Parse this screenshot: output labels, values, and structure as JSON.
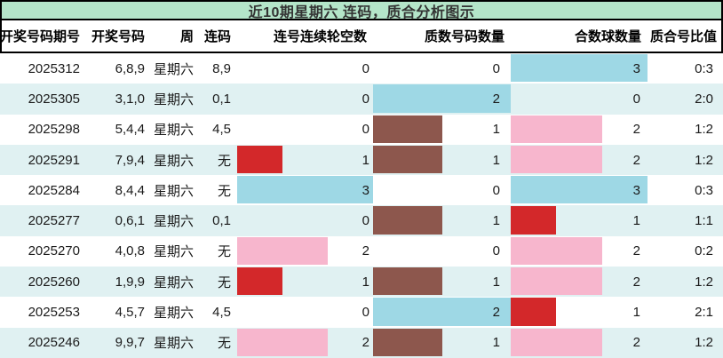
{
  "colors": {
    "title_bg": "#b4e5c9",
    "row_alt_bg": "#e0f1f2",
    "frame": "#000000",
    "text": "#1a1a1a"
  },
  "chart_data": {
    "type": "table",
    "title": "近10期星期六 连码，质合分析图示",
    "columns": [
      {
        "id": "period",
        "label": "开奖号码期号",
        "kind": "text"
      },
      {
        "id": "numbers",
        "label": "开奖号码",
        "kind": "text"
      },
      {
        "id": "week",
        "label": "周",
        "kind": "text"
      },
      {
        "id": "lianma",
        "label": "连码",
        "kind": "text"
      },
      {
        "id": "skip",
        "label": "连号连续轮空数",
        "kind": "bar",
        "max": 3
      },
      {
        "id": "prime",
        "label": "质数号码数量",
        "kind": "bar",
        "max": 2
      },
      {
        "id": "composite",
        "label": "合数球数量",
        "kind": "bar",
        "max": 3
      },
      {
        "id": "ratio",
        "label": "质合号比值",
        "kind": "text"
      }
    ],
    "bar_palette": {
      "red": "#d3282a",
      "pink": "#f7b6cd",
      "blue": "#9ed8e5",
      "brown": "#8d574d"
    },
    "rows": [
      {
        "period": "2025312",
        "numbers": "6,8,9",
        "week": "星期六",
        "lianma": "8,9",
        "skip": 0,
        "prime": 0,
        "composite": 3,
        "ratio": "0:3",
        "bar_colors": {
          "composite": "blue"
        }
      },
      {
        "period": "2025305",
        "numbers": "3,1,0",
        "week": "星期六",
        "lianma": "0,1",
        "skip": 0,
        "prime": 2,
        "composite": 0,
        "ratio": "2:0",
        "bar_colors": {
          "prime": "blue"
        }
      },
      {
        "period": "2025298",
        "numbers": "5,4,4",
        "week": "星期六",
        "lianma": "4,5",
        "skip": 0,
        "prime": 1,
        "composite": 2,
        "ratio": "1:2",
        "bar_colors": {
          "prime": "brown",
          "composite": "pink"
        }
      },
      {
        "period": "2025291",
        "numbers": "7,9,4",
        "week": "星期六",
        "lianma": "无",
        "skip": 1,
        "prime": 1,
        "composite": 2,
        "ratio": "1:2",
        "bar_colors": {
          "skip": "red",
          "prime": "brown",
          "composite": "pink"
        }
      },
      {
        "period": "2025284",
        "numbers": "8,4,4",
        "week": "星期六",
        "lianma": "无",
        "skip": 3,
        "prime": 0,
        "composite": 3,
        "ratio": "0:3",
        "bar_colors": {
          "skip": "blue",
          "composite": "blue"
        }
      },
      {
        "period": "2025277",
        "numbers": "0,6,1",
        "week": "星期六",
        "lianma": "0,1",
        "skip": 0,
        "prime": 1,
        "composite": 1,
        "ratio": "1:1",
        "bar_colors": {
          "prime": "brown",
          "composite": "red"
        }
      },
      {
        "period": "2025270",
        "numbers": "4,0,8",
        "week": "星期六",
        "lianma": "无",
        "skip": 2,
        "prime": 0,
        "composite": 2,
        "ratio": "0:2",
        "bar_colors": {
          "skip": "pink",
          "composite": "pink"
        }
      },
      {
        "period": "2025260",
        "numbers": "1,9,9",
        "week": "星期六",
        "lianma": "无",
        "skip": 1,
        "prime": 1,
        "composite": 2,
        "ratio": "1:2",
        "bar_colors": {
          "skip": "red",
          "prime": "brown",
          "composite": "pink"
        }
      },
      {
        "period": "2025253",
        "numbers": "4,5,7",
        "week": "星期六",
        "lianma": "4,5",
        "skip": 0,
        "prime": 2,
        "composite": 1,
        "ratio": "2:1",
        "bar_colors": {
          "prime": "blue",
          "composite": "red"
        }
      },
      {
        "period": "2025246",
        "numbers": "9,9,7",
        "week": "星期六",
        "lianma": "无",
        "skip": 2,
        "prime": 1,
        "composite": 2,
        "ratio": "1:2",
        "bar_colors": {
          "skip": "pink",
          "prime": "brown",
          "composite": "pink"
        }
      }
    ],
    "bar_series": [
      {
        "name": "连号连续轮空数",
        "values": [
          0,
          0,
          0,
          1,
          3,
          0,
          2,
          1,
          0,
          2
        ],
        "max": 3
      },
      {
        "name": "质数号码数量",
        "values": [
          0,
          2,
          1,
          1,
          0,
          1,
          0,
          1,
          2,
          1
        ],
        "max": 2
      },
      {
        "name": "合数球数量",
        "values": [
          3,
          0,
          2,
          2,
          3,
          1,
          2,
          2,
          1,
          2
        ],
        "max": 3
      }
    ],
    "layout": {
      "legend": false,
      "grid": false,
      "row_striping": true,
      "bar_direction": "left-to-right"
    }
  }
}
